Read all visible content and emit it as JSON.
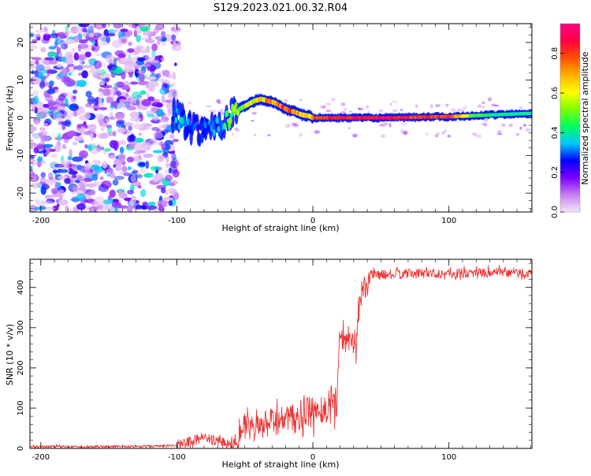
{
  "page_title": "S129.2023.021.00.32.R04",
  "chart_data": [
    {
      "type": "heatmap",
      "xlabel": "Height of straight line (km)",
      "ylabel": "Frequency (Hz)",
      "xlim": [
        -208,
        161
      ],
      "ylim": [
        -25,
        25
      ],
      "x_ticks": [
        -200,
        -100,
        0,
        100
      ],
      "y_ticks": [
        -20,
        -10,
        0,
        10,
        20
      ],
      "colorbar": {
        "label": "Normalized spectral amplitude",
        "range": [
          0,
          0.95
        ],
        "ticks": [
          0.0,
          0.2,
          0.4,
          0.6,
          0.8
        ],
        "colors": [
          "#f4e6f6",
          "#c77ff0",
          "#7a00ff",
          "#0000ff",
          "#00c8ff",
          "#00ff60",
          "#7cff00",
          "#ffff00",
          "#ffb000",
          "#ff5000",
          "#ff0040",
          "#ff0088"
        ]
      },
      "noise_region_x": [
        -208,
        -100
      ],
      "ridge": {
        "x": [
          -103,
          -98,
          -93,
          -88,
          -83,
          -78,
          -73,
          -68,
          -63,
          -58,
          -53,
          -48,
          -43,
          -38,
          -33,
          -28,
          -23,
          -18,
          -13,
          -8,
          -3,
          0,
          20,
          40,
          60,
          80,
          100,
          120,
          140,
          161
        ],
        "y": [
          1,
          0,
          -1.5,
          -2.5,
          -3,
          -3,
          -2.5,
          -2,
          0,
          1.5,
          2.5,
          3.5,
          4.5,
          5,
          4.5,
          4,
          3,
          2,
          1.5,
          0.8,
          0.5,
          0,
          0,
          0,
          0,
          0.2,
          0.3,
          0.6,
          0.9,
          1.2
        ],
        "amplitude": [
          0.3,
          0.35,
          0.3,
          0.3,
          0.25,
          0.3,
          0.3,
          0.35,
          0.45,
          0.5,
          0.5,
          0.55,
          0.6,
          0.65,
          0.7,
          0.75,
          0.8,
          0.8,
          0.75,
          0.7,
          0.7,
          0.85,
          0.95,
          0.95,
          0.95,
          0.9,
          0.9,
          0.5,
          0.45,
          0.45
        ]
      }
    },
    {
      "type": "line",
      "xlabel": "Height of straight line (km)",
      "ylabel": "SNR (10 * v/v)",
      "xlim": [
        -208,
        161
      ],
      "ylim": [
        0,
        470
      ],
      "x_ticks": [
        -200,
        -100,
        0,
        100
      ],
      "y_ticks": [
        0,
        100,
        200,
        300,
        400
      ],
      "series": [
        {
          "color": "#ee3333",
          "x": [
            -208,
            -190,
            -170,
            -150,
            -130,
            -110,
            -100,
            -95,
            -90,
            -85,
            -80,
            -75,
            -70,
            -65,
            -60,
            -55,
            -50,
            -45,
            -40,
            -35,
            -30,
            -25,
            -20,
            -15,
            -10,
            -5,
            0,
            5,
            10,
            15,
            18,
            20,
            22,
            25,
            28,
            32,
            35,
            37,
            39,
            41,
            45,
            60,
            80,
            100,
            120,
            140,
            161
          ],
          "y": [
            4,
            5,
            4,
            5,
            5,
            6,
            8,
            12,
            18,
            22,
            25,
            22,
            18,
            15,
            10,
            40,
            55,
            45,
            50,
            60,
            65,
            70,
            75,
            70,
            80,
            85,
            90,
            95,
            100,
            110,
            120,
            300,
            270,
            275,
            280,
            260,
            380,
            400,
            395,
            430,
            432,
            432,
            436,
            434,
            437,
            436,
            435
          ]
        }
      ]
    }
  ]
}
